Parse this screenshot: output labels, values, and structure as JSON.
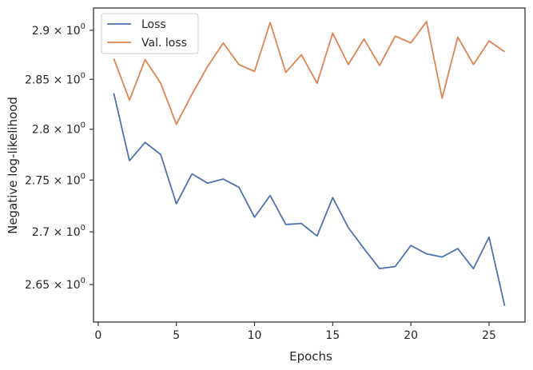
{
  "chart_data": {
    "type": "line",
    "xlabel": "Epochs",
    "ylabel": "Negative log-likelihood",
    "xlim": [
      -0.3,
      27.3
    ],
    "ylim": [
      2.615,
      2.923
    ],
    "yscale": "log",
    "grid": false,
    "legend_placement": "top-left",
    "x_ticks": [
      0,
      5,
      10,
      15,
      20,
      25
    ],
    "x_tick_labels": [
      "0",
      "5",
      "10",
      "15",
      "20",
      "25"
    ],
    "y_ticks": [
      2.65,
      2.7,
      2.75,
      2.8,
      2.85,
      2.9
    ],
    "y_tick_labels": [
      {
        "mantissa": "2.65",
        "base": "10",
        "exponent": "0"
      },
      {
        "mantissa": "2.7",
        "base": "10",
        "exponent": "0"
      },
      {
        "mantissa": "2.75",
        "base": "10",
        "exponent": "0"
      },
      {
        "mantissa": "2.8",
        "base": "10",
        "exponent": "0"
      },
      {
        "mantissa": "2.85",
        "base": "10",
        "exponent": "0"
      },
      {
        "mantissa": "2.9",
        "base": "10",
        "exponent": "0"
      }
    ],
    "x": [
      1,
      2,
      3,
      4,
      5,
      6,
      7,
      8,
      9,
      10,
      11,
      12,
      13,
      14,
      15,
      16,
      17,
      18,
      19,
      20,
      21,
      22,
      23,
      24,
      25,
      26
    ],
    "series": [
      {
        "name": "Loss",
        "color": "#4c72b0",
        "values": [
          2.836,
          2.769,
          2.787,
          2.775,
          2.727,
          2.756,
          2.747,
          2.751,
          2.743,
          2.714,
          2.735,
          2.707,
          2.708,
          2.696,
          2.733,
          2.704,
          2.684,
          2.665,
          2.667,
          2.687,
          2.679,
          2.676,
          2.684,
          2.665,
          2.695,
          2.63
        ]
      },
      {
        "name": "Val. loss",
        "color": "#dd8452",
        "values": [
          2.871,
          2.829,
          2.87,
          2.846,
          2.805,
          2.835,
          2.863,
          2.887,
          2.865,
          2.858,
          2.908,
          2.857,
          2.875,
          2.846,
          2.897,
          2.865,
          2.891,
          2.864,
          2.894,
          2.887,
          2.909,
          2.831,
          2.893,
          2.865,
          2.889,
          2.878
        ]
      }
    ]
  }
}
